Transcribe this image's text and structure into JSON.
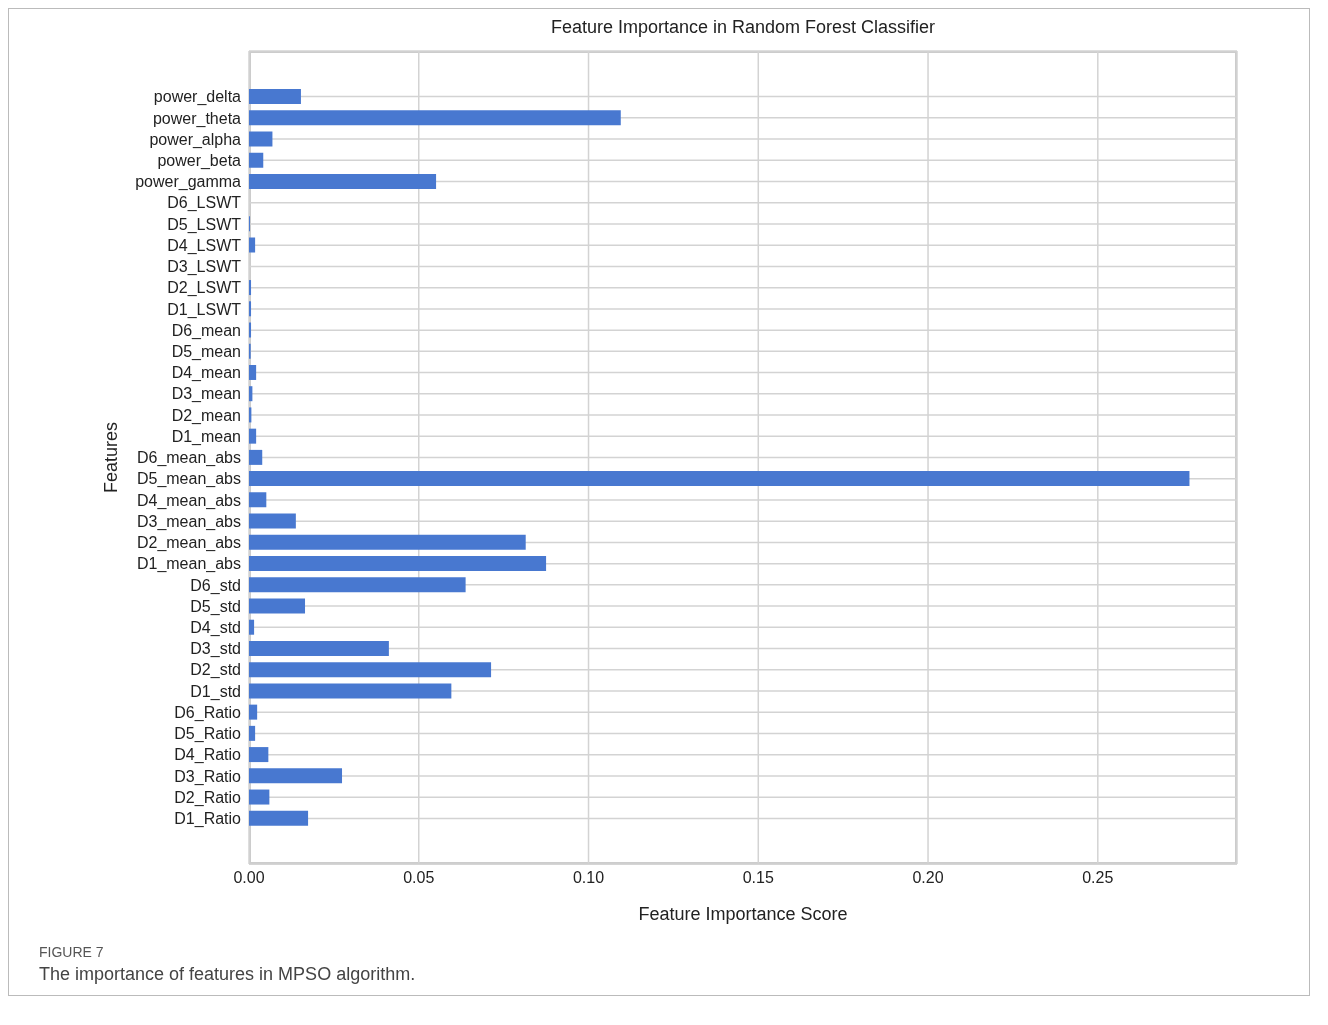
{
  "chart_data": {
    "type": "bar",
    "orientation": "horizontal",
    "title": "Feature Importance in Random Forest Classifier",
    "xlabel": "Feature Importance Score",
    "ylabel": "Features",
    "categories": [
      "power_delta",
      "power_theta",
      "power_alpha",
      "power_beta",
      "power_gamma",
      "D6_LSWT",
      "D5_LSWT",
      "D4_LSWT",
      "D3_LSWT",
      "D2_LSWT",
      "D1_LSWT",
      "D6_mean",
      "D5_mean",
      "D4_mean",
      "D3_mean",
      "D2_mean",
      "D1_mean",
      "D6_mean_abs",
      "D5_mean_abs",
      "D4_mean_abs",
      "D3_mean_abs",
      "D2_mean_abs",
      "D1_mean_abs",
      "D6_std",
      "D5_std",
      "D4_std",
      "D3_std",
      "D2_std",
      "D1_std",
      "D6_Ratio",
      "D5_Ratio",
      "D4_Ratio",
      "D3_Ratio",
      "D2_Ratio",
      "D1_Ratio"
    ],
    "values": [
      0.0153,
      0.1095,
      0.0069,
      0.0042,
      0.0551,
      0,
      0.0003,
      0.0018,
      0,
      0.0006,
      0.0006,
      0.0006,
      0.0005,
      0.0021,
      0.001,
      0.0007,
      0.0021,
      0.0039,
      0.277,
      0.0051,
      0.0138,
      0.0815,
      0.0875,
      0.0638,
      0.0165,
      0.0015,
      0.0412,
      0.0713,
      0.0596,
      0.0024,
      0.0018,
      0.0057,
      0.0274,
      0.006,
      0.0174
    ],
    "color": "#4878d0",
    "xlim": [
      0,
      0.291
    ],
    "xticks": [
      {
        "value": 0,
        "label": "0.00"
      },
      {
        "value": 0.05,
        "label": "0.05"
      },
      {
        "value": 0.1,
        "label": "0.10"
      },
      {
        "value": 0.15,
        "label": "0.15"
      },
      {
        "value": 0.2,
        "label": "0.20"
      },
      {
        "value": 0.25,
        "label": "0.25"
      }
    ],
    "grid": true,
    "annotations": [
      "FIGURE 7",
      "The importance of features in MPSO algorithm."
    ]
  }
}
